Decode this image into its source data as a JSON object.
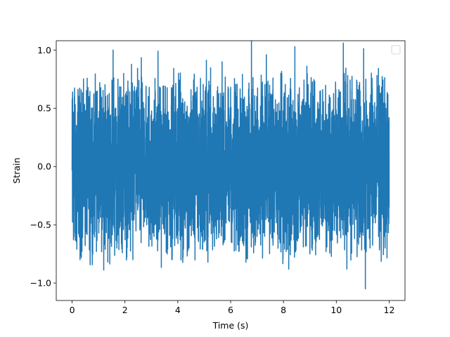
{
  "chart_data": {
    "type": "line",
    "title": "",
    "xlabel": "Time (s)",
    "ylabel": "Strain",
    "xlim": [
      -0.6,
      12.6
    ],
    "ylim": [
      -1.15,
      1.08
    ],
    "xticks": [
      0,
      2,
      4,
      6,
      8,
      10,
      12
    ],
    "xtick_labels": [
      "0",
      "2",
      "4",
      "6",
      "8",
      "10",
      "12"
    ],
    "yticks": [
      -1.0,
      -0.5,
      0.0,
      0.5,
      1.0
    ],
    "ytick_labels": [
      "−1.0",
      "−0.5",
      "0.0",
      "0.5",
      "1.0"
    ],
    "grid": false,
    "legend_position": "top-right",
    "series": [
      {
        "color": "#1f77b4",
        "x_range": [
          0,
          12
        ],
        "typical_amplitude": [
          -0.45,
          0.45
        ],
        "peaks": [
          {
            "x": 0.02,
            "y": 0.64
          },
          {
            "x": 0.05,
            "y": -0.63
          },
          {
            "x": 0.18,
            "y": -0.71
          },
          {
            "x": 0.25,
            "y": 0.52
          },
          {
            "x": 0.3,
            "y": -0.8
          },
          {
            "x": 0.6,
            "y": 0.62
          },
          {
            "x": 0.8,
            "y": -0.58
          },
          {
            "x": 1.1,
            "y": 0.55
          },
          {
            "x": 1.35,
            "y": -0.82
          },
          {
            "x": 1.55,
            "y": 1.0
          },
          {
            "x": 1.7,
            "y": -0.65
          },
          {
            "x": 1.95,
            "y": 0.8
          },
          {
            "x": 2.3,
            "y": -0.8
          },
          {
            "x": 2.8,
            "y": 0.69
          },
          {
            "x": 3.1,
            "y": -0.6
          },
          {
            "x": 3.25,
            "y": 0.99
          },
          {
            "x": 3.5,
            "y": -0.58
          },
          {
            "x": 3.9,
            "y": 0.6
          },
          {
            "x": 4.2,
            "y": -0.78
          },
          {
            "x": 4.5,
            "y": 0.66
          },
          {
            "x": 5.0,
            "y": -0.6
          },
          {
            "x": 5.5,
            "y": 0.6
          },
          {
            "x": 6.0,
            "y": 0.68
          },
          {
            "x": 6.2,
            "y": -0.72
          },
          {
            "x": 6.7,
            "y": 0.6
          },
          {
            "x": 7.0,
            "y": -0.6
          },
          {
            "x": 7.35,
            "y": 0.96
          },
          {
            "x": 7.6,
            "y": -0.65
          },
          {
            "x": 7.9,
            "y": 0.8
          },
          {
            "x": 8.2,
            "y": -0.88
          },
          {
            "x": 8.9,
            "y": 0.8
          },
          {
            "x": 9.0,
            "y": -0.75
          },
          {
            "x": 9.4,
            "y": 0.65
          },
          {
            "x": 9.8,
            "y": -0.6
          },
          {
            "x": 10.3,
            "y": 0.8
          },
          {
            "x": 10.4,
            "y": -0.88
          },
          {
            "x": 10.9,
            "y": 0.65
          },
          {
            "x": 11.1,
            "y": -1.05
          },
          {
            "x": 11.45,
            "y": 0.55
          },
          {
            "x": 11.6,
            "y": -0.6
          },
          {
            "x": 11.95,
            "y": 0.62
          },
          {
            "x": 12.0,
            "y": -0.35
          }
        ]
      }
    ]
  }
}
